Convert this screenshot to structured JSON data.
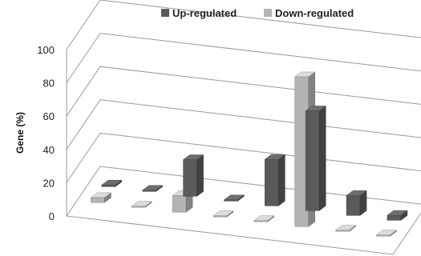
{
  "chart_data": {
    "type": "bar",
    "style": "3d-column",
    "title": "",
    "xlabel": "",
    "ylabel": "Gene (%)",
    "ylim": [
      0,
      100
    ],
    "yticks": [
      "0",
      "20",
      "40",
      "60",
      "80",
      "100"
    ],
    "grid": true,
    "legend_position": "top-right",
    "categories": [
      "",
      "",
      "",
      "",
      "",
      "",
      "",
      ""
    ],
    "series": [
      {
        "name": "Up-regulated",
        "color": "#5a5a5a",
        "values": [
          1,
          0,
          22,
          0,
          28,
          60,
          12,
          3
        ]
      },
      {
        "name": "Down-regulated",
        "color": "#b4b4b4",
        "values": [
          3,
          0,
          10,
          0,
          0,
          90,
          0,
          0
        ]
      }
    ]
  }
}
